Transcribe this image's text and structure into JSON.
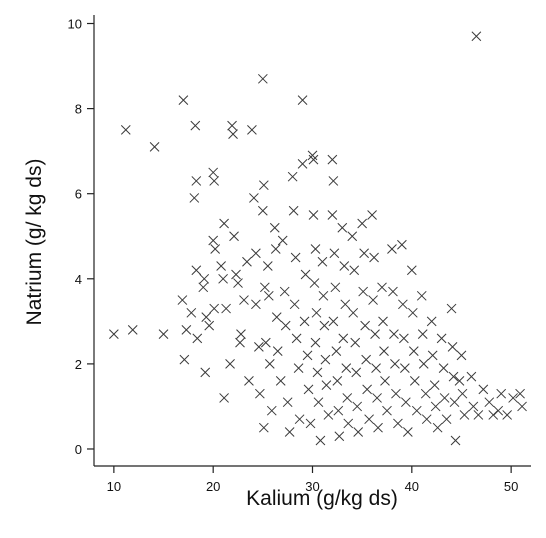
{
  "chart_data": {
    "type": "scatter",
    "title": "",
    "xlabel": "Kalium (g/kg ds)",
    "ylabel": "Natrium (g/ kg ds)",
    "xlim": [
      8,
      52
    ],
    "ylim": [
      -0.4,
      10.2
    ],
    "xticks": [
      "10",
      "20",
      "30",
      "40",
      "50"
    ],
    "yticks": [
      "0",
      "2",
      "4",
      "6",
      "8",
      "10"
    ],
    "grid": false,
    "legend": "none",
    "marker": "x",
    "marker_color": "#3a3a3a",
    "points": [
      [
        10.0,
        2.7
      ],
      [
        11.2,
        7.5
      ],
      [
        11.9,
        2.8
      ],
      [
        14.1,
        7.1
      ],
      [
        15.0,
        2.7
      ],
      [
        17.0,
        8.2
      ],
      [
        16.9,
        3.5
      ],
      [
        17.1,
        2.1
      ],
      [
        17.3,
        2.8
      ],
      [
        17.8,
        3.2
      ],
      [
        18.2,
        7.6
      ],
      [
        18.3,
        6.3
      ],
      [
        18.1,
        5.9
      ],
      [
        18.3,
        4.2
      ],
      [
        18.4,
        2.6
      ],
      [
        19.0,
        3.8
      ],
      [
        19.1,
        4.0
      ],
      [
        19.3,
        3.1
      ],
      [
        19.2,
        1.8
      ],
      [
        19.6,
        2.9
      ],
      [
        20.0,
        6.5
      ],
      [
        20.1,
        6.3
      ],
      [
        20.0,
        4.9
      ],
      [
        20.2,
        4.7
      ],
      [
        20.1,
        3.3
      ],
      [
        20.8,
        4.3
      ],
      [
        21.1,
        5.3
      ],
      [
        21.0,
        4.0
      ],
      [
        21.3,
        3.3
      ],
      [
        21.1,
        1.2
      ],
      [
        21.7,
        2.0
      ],
      [
        21.9,
        7.6
      ],
      [
        22.0,
        7.4
      ],
      [
        22.1,
        5.0
      ],
      [
        22.3,
        4.1
      ],
      [
        22.5,
        3.9
      ],
      [
        22.8,
        2.7
      ],
      [
        22.7,
        2.5
      ],
      [
        23.1,
        3.5
      ],
      [
        23.4,
        4.4
      ],
      [
        23.6,
        1.6
      ],
      [
        23.9,
        7.5
      ],
      [
        24.1,
        5.9
      ],
      [
        24.3,
        4.6
      ],
      [
        24.3,
        3.4
      ],
      [
        24.6,
        2.4
      ],
      [
        24.7,
        1.3
      ],
      [
        25.0,
        8.7
      ],
      [
        25.1,
        6.2
      ],
      [
        25.0,
        5.6
      ],
      [
        25.2,
        3.8
      ],
      [
        25.3,
        2.5
      ],
      [
        25.1,
        0.5
      ],
      [
        25.5,
        4.3
      ],
      [
        25.6,
        3.6
      ],
      [
        25.7,
        2.0
      ],
      [
        25.9,
        0.9
      ],
      [
        26.2,
        5.2
      ],
      [
        26.3,
        4.7
      ],
      [
        26.4,
        3.1
      ],
      [
        26.5,
        2.3
      ],
      [
        26.8,
        1.6
      ],
      [
        27.0,
        4.9
      ],
      [
        27.2,
        3.7
      ],
      [
        27.3,
        2.9
      ],
      [
        27.5,
        1.1
      ],
      [
        27.7,
        0.4
      ],
      [
        28.0,
        6.4
      ],
      [
        28.1,
        5.6
      ],
      [
        28.3,
        4.5
      ],
      [
        28.2,
        3.4
      ],
      [
        28.4,
        2.6
      ],
      [
        28.6,
        1.9
      ],
      [
        28.7,
        0.7
      ],
      [
        29.0,
        8.2
      ],
      [
        29.0,
        6.7
      ],
      [
        29.3,
        4.1
      ],
      [
        29.2,
        3.0
      ],
      [
        29.5,
        2.2
      ],
      [
        29.6,
        1.4
      ],
      [
        29.8,
        0.6
      ],
      [
        30.0,
        6.9
      ],
      [
        30.1,
        6.8
      ],
      [
        30.1,
        5.5
      ],
      [
        30.3,
        4.7
      ],
      [
        30.2,
        3.9
      ],
      [
        30.4,
        3.2
      ],
      [
        30.3,
        2.5
      ],
      [
        30.5,
        1.8
      ],
      [
        30.6,
        1.1
      ],
      [
        30.8,
        0.2
      ],
      [
        31.0,
        4.4
      ],
      [
        31.1,
        3.6
      ],
      [
        31.2,
        2.9
      ],
      [
        31.3,
        2.1
      ],
      [
        31.4,
        1.5
      ],
      [
        31.6,
        0.8
      ],
      [
        32.0,
        6.8
      ],
      [
        32.1,
        6.3
      ],
      [
        32.0,
        5.5
      ],
      [
        32.2,
        4.6
      ],
      [
        32.3,
        3.8
      ],
      [
        32.1,
        3.0
      ],
      [
        32.4,
        2.3
      ],
      [
        32.5,
        1.6
      ],
      [
        32.6,
        0.9
      ],
      [
        32.7,
        0.3
      ],
      [
        33.0,
        5.2
      ],
      [
        33.2,
        4.3
      ],
      [
        33.3,
        3.4
      ],
      [
        33.1,
        2.6
      ],
      [
        33.4,
        1.9
      ],
      [
        33.5,
        1.2
      ],
      [
        33.6,
        0.6
      ],
      [
        34.0,
        5.0
      ],
      [
        34.2,
        4.2
      ],
      [
        34.1,
        3.2
      ],
      [
        34.3,
        2.5
      ],
      [
        34.4,
        1.8
      ],
      [
        34.5,
        1.0
      ],
      [
        34.6,
        0.4
      ],
      [
        35.0,
        5.3
      ],
      [
        35.2,
        4.6
      ],
      [
        35.1,
        3.7
      ],
      [
        35.3,
        2.9
      ],
      [
        35.4,
        2.1
      ],
      [
        35.5,
        1.4
      ],
      [
        35.7,
        0.7
      ],
      [
        36.0,
        5.5
      ],
      [
        36.2,
        4.5
      ],
      [
        36.1,
        3.5
      ],
      [
        36.3,
        2.7
      ],
      [
        36.4,
        1.9
      ],
      [
        36.5,
        1.2
      ],
      [
        36.6,
        0.5
      ],
      [
        37.0,
        3.8
      ],
      [
        37.1,
        3.0
      ],
      [
        37.2,
        2.3
      ],
      [
        37.3,
        1.6
      ],
      [
        37.5,
        0.9
      ],
      [
        38.0,
        4.7
      ],
      [
        38.1,
        3.7
      ],
      [
        38.2,
        2.7
      ],
      [
        38.3,
        2.0
      ],
      [
        38.4,
        1.3
      ],
      [
        38.6,
        0.6
      ],
      [
        39.0,
        4.8
      ],
      [
        39.1,
        3.4
      ],
      [
        39.2,
        2.6
      ],
      [
        39.3,
        1.9
      ],
      [
        39.4,
        1.1
      ],
      [
        39.6,
        0.4
      ],
      [
        40.0,
        4.2
      ],
      [
        40.1,
        3.2
      ],
      [
        40.2,
        2.3
      ],
      [
        40.3,
        1.6
      ],
      [
        40.5,
        0.9
      ],
      [
        41.0,
        3.6
      ],
      [
        41.1,
        2.7
      ],
      [
        41.2,
        2.0
      ],
      [
        41.4,
        1.3
      ],
      [
        41.5,
        0.7
      ],
      [
        42.0,
        3.0
      ],
      [
        42.1,
        2.2
      ],
      [
        42.3,
        1.5
      ],
      [
        42.4,
        1.0
      ],
      [
        42.6,
        0.5
      ],
      [
        43.0,
        2.6
      ],
      [
        43.2,
        1.9
      ],
      [
        43.3,
        1.2
      ],
      [
        43.5,
        0.7
      ],
      [
        44.0,
        3.3
      ],
      [
        44.1,
        2.4
      ],
      [
        44.2,
        1.7
      ],
      [
        44.3,
        1.1
      ],
      [
        44.4,
        0.2
      ],
      [
        44.8,
        1.6
      ],
      [
        45.0,
        2.2
      ],
      [
        45.1,
        1.3
      ],
      [
        45.3,
        0.8
      ],
      [
        46.0,
        1.7
      ],
      [
        46.2,
        1.0
      ],
      [
        46.5,
        9.7
      ],
      [
        46.7,
        0.8
      ],
      [
        47.2,
        1.4
      ],
      [
        47.8,
        1.1
      ],
      [
        48.2,
        0.8
      ],
      [
        48.7,
        0.9
      ],
      [
        49.0,
        1.3
      ],
      [
        49.6,
        0.8
      ],
      [
        50.2,
        1.2
      ],
      [
        50.9,
        1.3
      ],
      [
        51.1,
        1.0
      ]
    ]
  }
}
